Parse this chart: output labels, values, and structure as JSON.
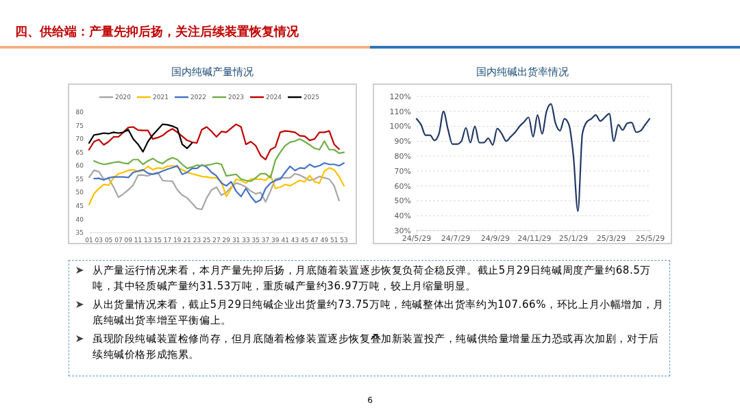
{
  "chart_data": [
    {
      "type": "line",
      "title": "国内纯碱产量情况",
      "categories": [
        "01",
        null,
        "03",
        null,
        "05",
        null,
        "07",
        null,
        "09",
        null,
        "11",
        null,
        "13",
        null,
        "15",
        null,
        "17",
        null,
        "19",
        null,
        "21",
        null,
        "23",
        null,
        "25",
        null,
        "27",
        null,
        "29",
        null,
        "31",
        null,
        "33",
        null,
        "35",
        null,
        "37",
        null,
        "39",
        null,
        "41",
        null,
        "43",
        null,
        "45",
        null,
        "47",
        null,
        "49",
        null,
        "51",
        null,
        "53"
      ],
      "series": [
        {
          "name": "2020",
          "color": "#a6a6a6",
          "values": [
            55.7,
            58.3,
            57.8,
            55,
            55.3,
            52,
            48.2,
            49.5,
            51,
            52.8,
            56.5,
            56.5,
            56.2,
            57,
            57.5,
            54.5,
            54.3,
            54.2,
            51,
            49,
            48,
            46,
            44,
            43.7,
            48,
            51,
            52,
            49,
            50,
            52,
            53.5,
            53,
            52,
            50.5,
            49.5,
            50,
            46.5,
            50.5,
            55,
            55.5,
            55.5,
            55.5,
            57,
            56.5,
            55.5,
            54.5,
            55,
            56,
            55.5,
            55,
            52.5,
            47,
            null
          ]
        },
        {
          "name": "2021",
          "color": "#ffc000",
          "values": [
            45.5,
            49.5,
            51.5,
            53,
            52.7,
            55.5,
            57,
            57.5,
            58.3,
            58.5,
            57.8,
            58.2,
            59.8,
            58.5,
            59.2,
            59,
            59.8,
            60,
            59.5,
            58.5,
            57.5,
            57,
            56.5,
            56,
            55.8,
            55.5,
            55.5,
            54,
            48.5,
            51.5,
            55,
            54.5,
            53.5,
            55,
            55,
            55,
            54.5,
            56.5,
            51.5,
            52,
            53,
            52.5,
            53.5,
            54.5,
            54,
            56.3,
            54,
            53.5,
            58,
            59.2,
            58.5,
            56,
            52.5
          ]
        },
        {
          "name": "2022",
          "color": "#4472c4",
          "values": [
            null,
            55.2,
            55.3,
            54.7,
            55.5,
            55.8,
            55.8,
            55.8,
            55.6,
            57.5,
            58,
            58.5,
            57.2,
            56.8,
            57.2,
            58,
            58.7,
            59.3,
            60,
            56.8,
            57.5,
            59,
            59,
            60.3,
            59.5,
            57.5,
            56.2,
            53.5,
            52.5,
            54,
            50.5,
            48.5,
            51.5,
            48.5,
            46.3,
            47.2,
            51.5,
            53.5,
            54.5,
            55,
            57.5,
            59.8,
            58.2,
            59.2,
            59,
            60.5,
            59.5,
            60,
            61,
            60.5,
            60.5,
            60,
            61
          ]
        },
        {
          "name": "2023",
          "color": "#70ad47",
          "values": [
            null,
            61.8,
            61,
            60.5,
            60.8,
            61.2,
            61.5,
            61,
            60.8,
            62.3,
            62.3,
            60.5,
            61.8,
            62.7,
            61.5,
            60.8,
            62.2,
            63,
            62.3,
            60.5,
            59,
            59.5,
            60.2,
            60,
            60.2,
            60.5,
            61,
            60.5,
            56.2,
            56.5,
            56.8,
            55,
            54.5,
            54.2,
            55.5,
            57,
            57,
            55.5,
            62,
            65,
            67.5,
            68.8,
            69.2,
            70,
            69,
            67.8,
            66.5,
            66,
            69.2,
            66,
            66,
            64.7,
            65
          ]
        },
        {
          "name": "2024",
          "color": "#c00000",
          "values": [
            66,
            69,
            69.8,
            67.8,
            69,
            70.8,
            70.8,
            72.5,
            74.3,
            74.5,
            73.3,
            73.2,
            73.2,
            70,
            70.5,
            71.3,
            72.8,
            73.8,
            72.5,
            71,
            69.5,
            68.8,
            68.5,
            73.5,
            74.5,
            72.8,
            70.8,
            72.8,
            72.5,
            74,
            75.5,
            74.5,
            68,
            69,
            67.5,
            63.8,
            62.3,
            66,
            67,
            72.5,
            73,
            72.8,
            72.5,
            71.2,
            71,
            69.5,
            70,
            72.5,
            72.5,
            73,
            68,
            66.2,
            null
          ]
        },
        {
          "name": "2025",
          "color": "#000000",
          "values": [
            68.5,
            71.5,
            71.8,
            72.2,
            72,
            72.5,
            72.2,
            72.5,
            73.5,
            70,
            68,
            65.2,
            69,
            71.5,
            73.5,
            75.5,
            75.3,
            74.8,
            74,
            68,
            66.5,
            68.5,
            null,
            null,
            null,
            null,
            null,
            null,
            null,
            null,
            null,
            null,
            null,
            null,
            null,
            null,
            null,
            null,
            null,
            null,
            null,
            null,
            null,
            null,
            null,
            null,
            null,
            null,
            null,
            null,
            null,
            null,
            null
          ]
        }
      ],
      "ylim": [
        35,
        80
      ],
      "yticks": [
        35,
        40,
        45,
        50,
        55,
        60,
        65,
        70,
        75,
        80
      ],
      "legend": "top"
    },
    {
      "type": "line",
      "title": "国内纯碱出货率情况",
      "x": [
        "2024-05-29",
        "2024-06-05",
        "2024-06-12",
        "2024-06-19",
        "2024-06-26",
        "2024-07-03",
        "2024-07-10",
        "2024-07-17",
        "2024-07-24",
        "2024-07-31",
        "2024-08-07",
        "2024-08-14",
        "2024-08-21",
        "2024-08-28",
        "2024-09-04",
        "2024-09-11",
        "2024-09-18",
        "2024-09-25",
        "2024-10-02",
        "2024-10-09",
        "2024-10-16",
        "2024-10-23",
        "2024-10-30",
        "2024-11-06",
        "2024-11-13",
        "2024-11-20",
        "2024-11-27",
        "2024-12-04",
        "2024-12-11",
        "2024-12-18",
        "2024-12-25",
        "2025-01-01",
        "2025-01-08",
        "2025-01-15",
        "2025-01-22",
        "2025-01-29",
        "2025-02-05",
        "2025-02-12",
        "2025-02-19",
        "2025-02-26",
        "2025-03-05",
        "2025-03-12",
        "2025-03-19",
        "2025-03-26",
        "2025-04-02",
        "2025-04-09",
        "2025-04-16",
        "2025-04-23",
        "2025-04-30",
        "2025-05-07",
        "2025-05-14",
        "2025-05-21",
        "2025-05-28"
      ],
      "series": [
        {
          "color": "#203864",
          "values": [
            105,
            101,
            94,
            94,
            90.5,
            95,
            110,
            98,
            88,
            88,
            90,
            99,
            89,
            100,
            89,
            89,
            92,
            87.5,
            98.5,
            95,
            90,
            93,
            96,
            100,
            103,
            106,
            93,
            107.5,
            95,
            110,
            115,
            102,
            97,
            105,
            101,
            80,
            43,
            95,
            103,
            105,
            107.5,
            103.5,
            106,
            108.5,
            90,
            101,
            97.5,
            102,
            102.5,
            96,
            97,
            101,
            105
          ]
        }
      ],
      "xlim": [
        "2024-05-29",
        "2025-05-29"
      ],
      "xticks": [
        {
          "value": "2024-05-29",
          "label": "24/5/29"
        },
        {
          "value": "2024-07-29",
          "label": "24/7/29"
        },
        {
          "value": "2024-09-29",
          "label": "24/9/29"
        },
        {
          "value": "2024-11-29",
          "label": "24/11/29"
        },
        {
          "value": "2025-01-29",
          "label": "25/1/29"
        },
        {
          "value": "2025-03-29",
          "label": "25/3/29"
        },
        {
          "value": "2025-05-29",
          "label": "25/5/29"
        }
      ],
      "ylim": [
        30,
        120
      ],
      "yticks": [
        {
          "value": 30,
          "label": "30%"
        },
        {
          "value": 40,
          "label": "40%"
        },
        {
          "value": 50,
          "label": "50%"
        },
        {
          "value": 60,
          "label": "60%"
        },
        {
          "value": 70,
          "label": "70%"
        },
        {
          "value": 80,
          "label": "80%"
        },
        {
          "value": 90,
          "label": "90%"
        },
        {
          "value": 100,
          "label": "100%"
        },
        {
          "value": 110,
          "label": "110%"
        },
        {
          "value": 120,
          "label": "120%"
        }
      ],
      "grid": "y"
    },
    {
      "type": "other",
      "title": "四、供给端：产量先抑后扬，关注后续装置恢复情况",
      "annotations": [
        "从产量运行情况来看，本月产量先抑后扬，月底随着装置逐步恢复负荷企稳反弹。截止5月29日纯碱周度产量约68.5万吨，其中轻质碱产量约31.53万吨，重质碱产量约36.97万吨，较上月缩量明显。",
        "从出货量情况来看，截止5月29日纯碱企业出货量约73.75万吨，纯碱整体出货率约为107.66%，环比上月小幅增加，月底纯碱出货率增至平衡偏上。",
        "虽现阶段纯碱装置检修尚存，但月底随着检修装置逐步恢复叠加新装置投产，纯碱供给量增量压力恐或再次加剧，对于后续纯碱价格形成拖累。",
        "6"
      ]
    }
  ]
}
